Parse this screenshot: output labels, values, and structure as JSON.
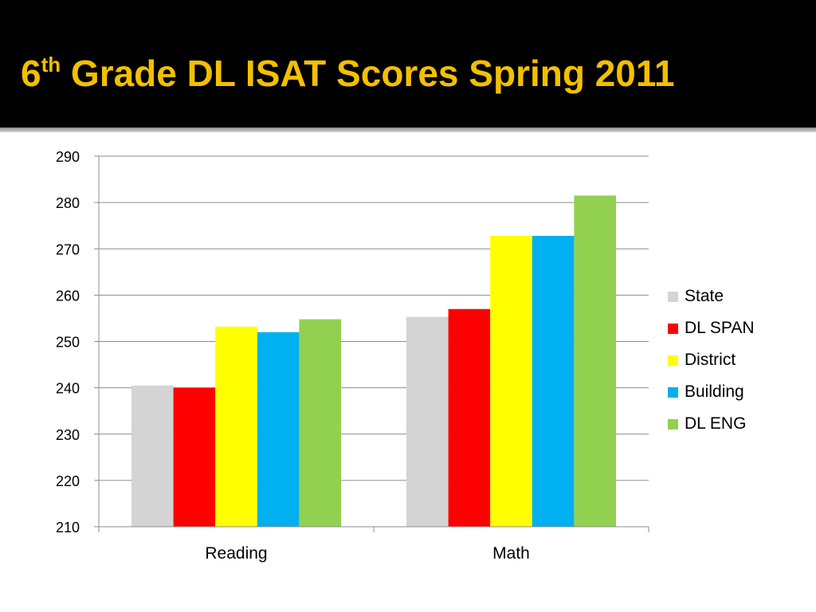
{
  "slide": {
    "title_number": "6",
    "title_suffix": "th",
    "title_rest": " Grade DL ISAT Scores Spring 2011"
  },
  "chart_data": {
    "type": "bar",
    "title": "",
    "xlabel": "",
    "ylabel": "",
    "categories": [
      "Reading",
      "Math"
    ],
    "ylim": [
      210,
      290
    ],
    "yticks": [
      210,
      220,
      230,
      240,
      250,
      260,
      270,
      280,
      290
    ],
    "grid": true,
    "legend_position": "right",
    "series": [
      {
        "name": "State",
        "values": [
          240.5,
          255.3
        ],
        "color": "#d4d4d4"
      },
      {
        "name": "DL SPAN",
        "values": [
          240.0,
          257.0
        ],
        "color": "#ff0000"
      },
      {
        "name": "District",
        "values": [
          253.2,
          272.8
        ],
        "color": "#ffff00"
      },
      {
        "name": "Building",
        "values": [
          252.0,
          272.8
        ],
        "color": "#00b0f0"
      },
      {
        "name": "DL ENG",
        "values": [
          254.8,
          281.5
        ],
        "color": "#92d050"
      }
    ]
  }
}
